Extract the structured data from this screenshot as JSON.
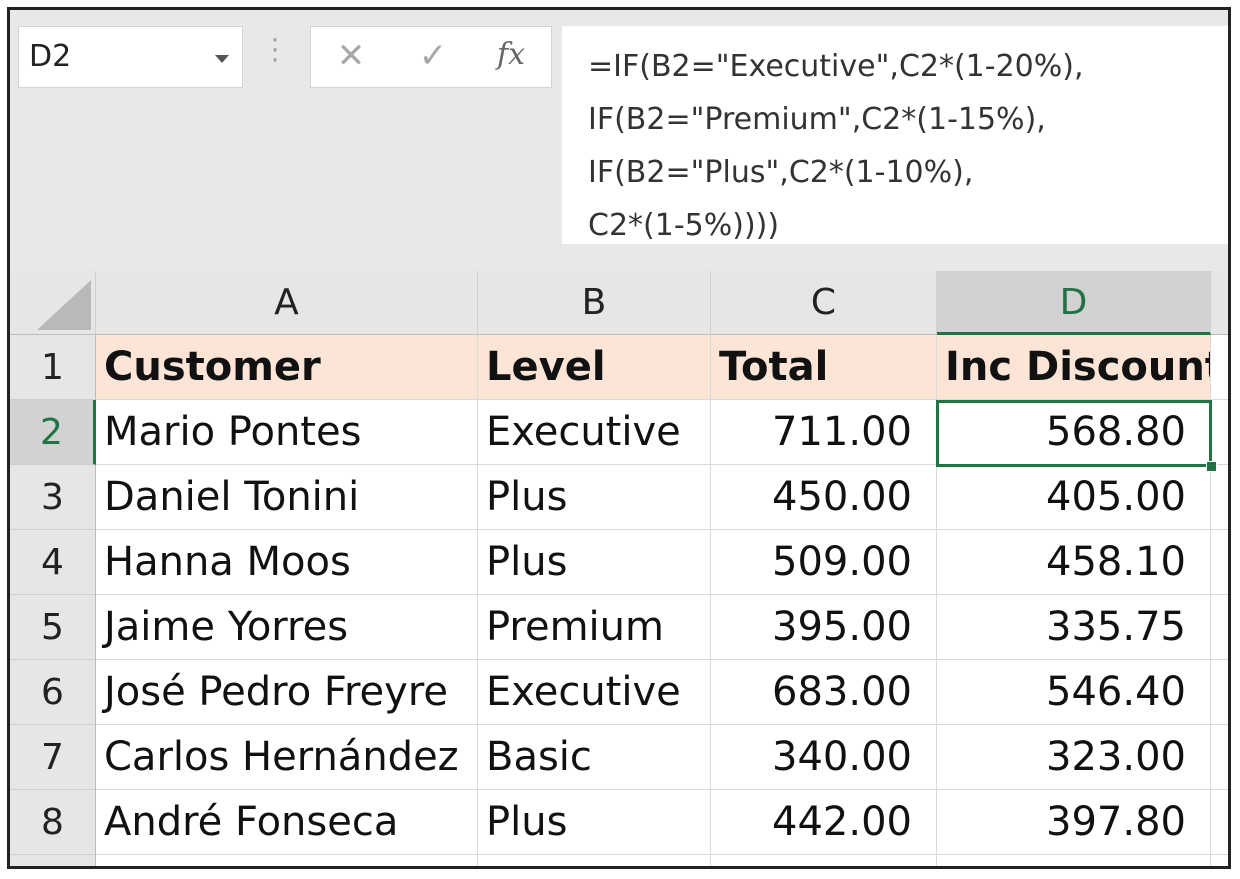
{
  "name_box": {
    "value": "D2"
  },
  "formula_bar": {
    "cancel_icon": "x-icon",
    "enter_icon": "checkmark-icon",
    "fx_label": "fx",
    "formula_lines": [
      "=IF(B2=\"Executive\",C2*(1-20%),",
      "IF(B2=\"Premium\",C2*(1-15%),",
      "IF(B2=\"Plus\",C2*(1-10%),",
      "C2*(1-5%))))"
    ]
  },
  "sheet": {
    "columns": [
      "A",
      "B",
      "C",
      "D"
    ],
    "selected_column": "D",
    "rows": [
      "1",
      "2",
      "3",
      "4",
      "5",
      "6",
      "7",
      "8"
    ],
    "selected_row": "2",
    "selected_cell": "D2",
    "header_fill": "#fce4d6",
    "selection_color": "#217346",
    "headers": [
      "Customer",
      "Level",
      "Total",
      "Inc Discount"
    ],
    "data": [
      [
        "Mario Pontes",
        "Executive",
        "711.00",
        "568.80"
      ],
      [
        "Daniel Tonini",
        "Plus",
        "450.00",
        "405.00"
      ],
      [
        "Hanna Moos",
        "Plus",
        "509.00",
        "458.10"
      ],
      [
        "Jaime Yorres",
        "Premium",
        "395.00",
        "335.75"
      ],
      [
        "José Pedro Freyre",
        "Executive",
        "683.00",
        "546.40"
      ],
      [
        "Carlos Hernández",
        "Basic",
        "340.00",
        "323.00"
      ],
      [
        "André Fonseca",
        "Plus",
        "442.00",
        "397.80"
      ]
    ]
  }
}
